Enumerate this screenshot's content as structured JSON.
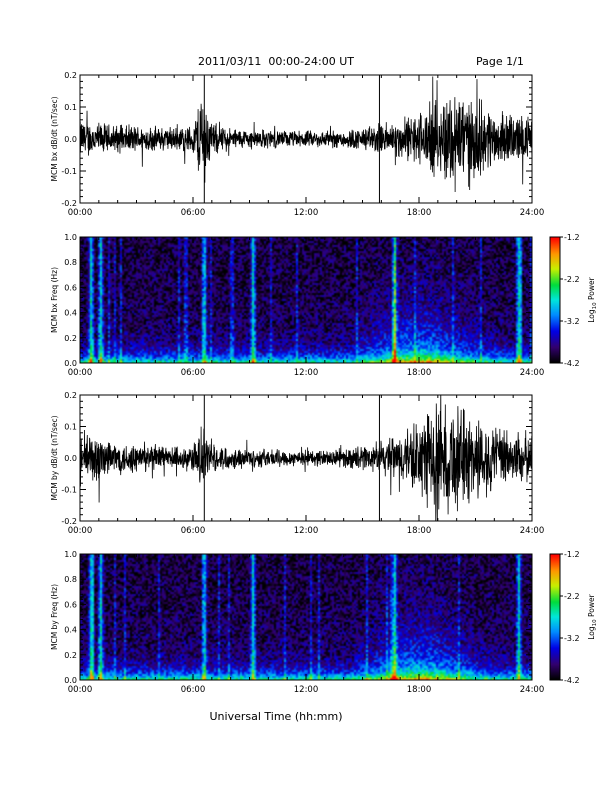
{
  "header": {
    "title": "2011/03/11  00:00-24:00 UT",
    "page": "Page 1/1"
  },
  "xaxis": {
    "label": "Universal Time (hh:mm)",
    "ticks": [
      "00:00",
      "06:00",
      "12:00",
      "18:00",
      "24:00"
    ],
    "range_hours": [
      0,
      24
    ]
  },
  "colorbar": {
    "label": "Log",
    "label_sub": "10",
    "label_tail": " Power",
    "ticks": [
      "-1.2",
      "-2.2",
      "-3.2",
      "-4.2"
    ],
    "range": [
      -4.2,
      -1.2
    ]
  },
  "chart_data": [
    {
      "type": "line",
      "ylabel": "MCM bx dB/dt (nT/sec)",
      "yticks": [
        "0.2",
        "0.1",
        "0.0",
        "-0.1",
        "-0.2"
      ],
      "ylim": [
        -0.2,
        0.2
      ],
      "x_unit": "hours UT",
      "envelope": {
        "hours": [
          0,
          1,
          2,
          3,
          4,
          5,
          6,
          6.5,
          7,
          8,
          9,
          10,
          11,
          12,
          13,
          14,
          15,
          16,
          17,
          18,
          19,
          20,
          21,
          22,
          23,
          24
        ],
        "amplitude": [
          0.07,
          0.06,
          0.05,
          0.05,
          0.045,
          0.045,
          0.05,
          0.2,
          0.06,
          0.04,
          0.035,
          0.035,
          0.03,
          0.03,
          0.03,
          0.035,
          0.04,
          0.06,
          0.07,
          0.1,
          0.14,
          0.2,
          0.15,
          0.1,
          0.09,
          0.08
        ]
      },
      "spikes_hours": [
        6.6,
        15.9
      ]
    },
    {
      "type": "heatmap",
      "ylabel": "MCM bx Freq (Hz)",
      "yticks": [
        "1.0",
        "0.8",
        "0.6",
        "0.4",
        "0.2",
        "0.0"
      ],
      "ylim": [
        0,
        1
      ],
      "colorscale": "log10 power",
      "zlim": [
        -4.2,
        -1.2
      ],
      "bright_bands_hours": [
        0.6,
        1.1,
        6.6,
        9.2,
        16.7,
        23.3
      ],
      "activity_peak_hours": [
        16,
        20
      ]
    },
    {
      "type": "line",
      "ylabel": "MCM by dB/dt (nT/sec)",
      "yticks": [
        "0.2",
        "0.1",
        "0.0",
        "-0.1",
        "-0.2"
      ],
      "ylim": [
        -0.2,
        0.2
      ],
      "x_unit": "hours UT",
      "envelope": {
        "hours": [
          0,
          1,
          2,
          3,
          4,
          5,
          6,
          6.5,
          7,
          8,
          9,
          10,
          11,
          12,
          13,
          14,
          15,
          16,
          17,
          18,
          19,
          20,
          21,
          22,
          23,
          24
        ],
        "amplitude": [
          0.1,
          0.09,
          0.06,
          0.055,
          0.05,
          0.045,
          0.05,
          0.12,
          0.05,
          0.04,
          0.035,
          0.035,
          0.03,
          0.03,
          0.03,
          0.035,
          0.045,
          0.06,
          0.09,
          0.14,
          0.2,
          0.2,
          0.16,
          0.12,
          0.1,
          0.09
        ]
      },
      "spikes_hours": [
        6.6,
        15.9
      ]
    },
    {
      "type": "heatmap",
      "ylabel": "MCM by Freq (Hz)",
      "yticks": [
        "1.0",
        "0.8",
        "0.6",
        "0.4",
        "0.2",
        "0.0"
      ],
      "ylim": [
        0,
        1
      ],
      "colorscale": "log10 power",
      "zlim": [
        -4.2,
        -1.2
      ],
      "bright_bands_hours": [
        0.6,
        1.1,
        6.6,
        9.2,
        16.7,
        23.3
      ],
      "activity_peak_hours": [
        16,
        20
      ]
    }
  ]
}
